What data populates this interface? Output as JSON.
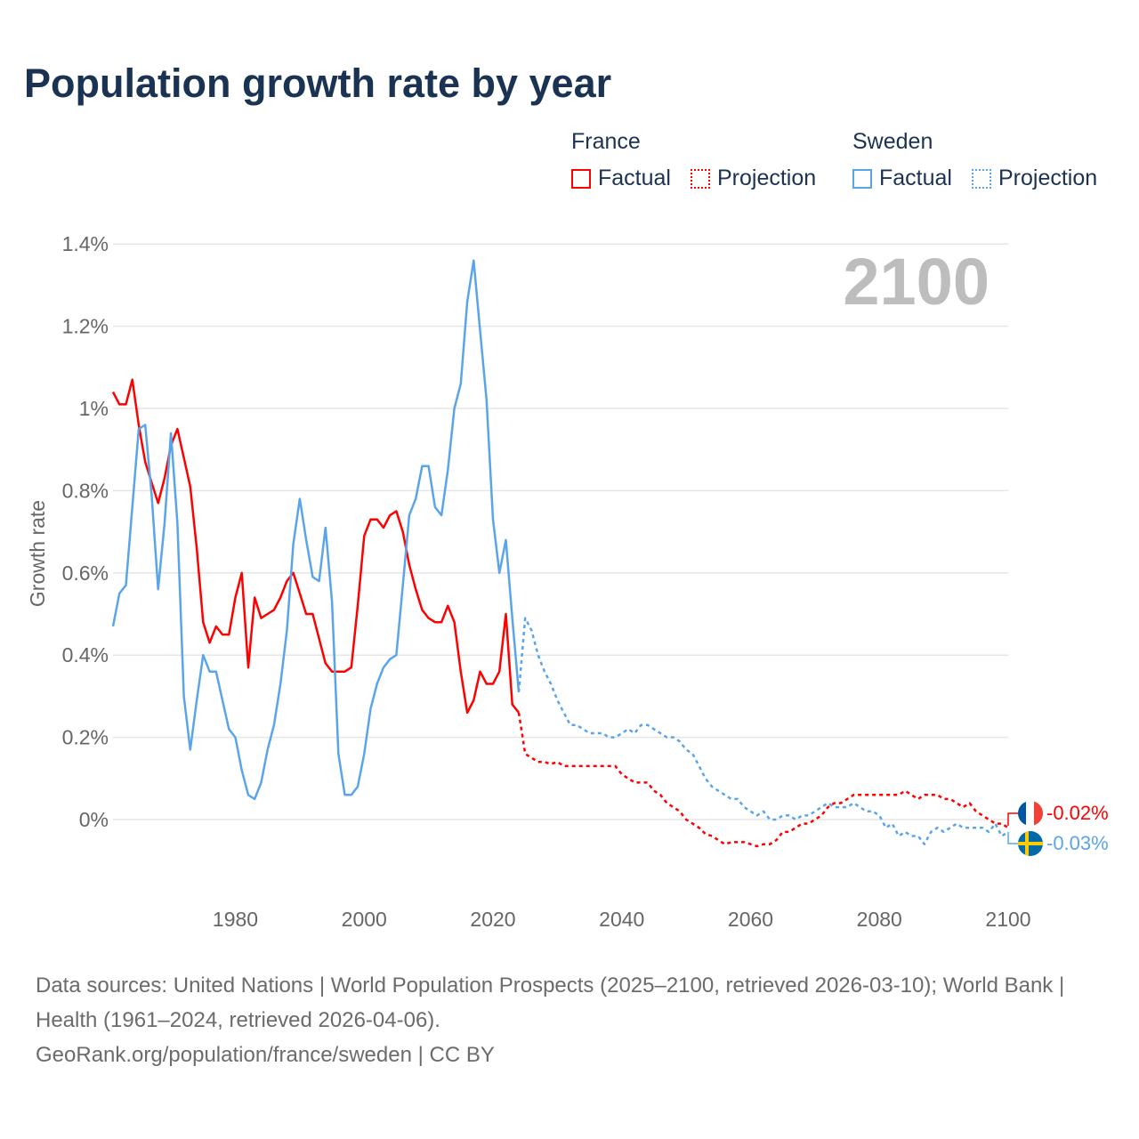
{
  "title": "Population growth rate by year",
  "legend": {
    "groups": [
      {
        "name": "France",
        "factual": "Factual",
        "projection": "Projection",
        "color": "#ff0000"
      },
      {
        "name": "Sweden",
        "factual": "Factual",
        "projection": "Projection",
        "color": "#5aa5ea"
      }
    ]
  },
  "current_year_label": "2100",
  "end_labels": {
    "france": "-0.02%",
    "sweden": "-0.03%"
  },
  "footer": {
    "sources": "Data sources: United Nations | World Population Prospects (2025–2100, retrieved 2026-03-10); World Bank | Health (1961–2024, retrieved 2026-04-06).",
    "credit": "GeoRank.org/population/france/sweden | CC BY"
  },
  "chart_data": {
    "type": "line",
    "title": "Population growth rate by year",
    "xlabel": "",
    "ylabel": "Growth rate",
    "xlim": [
      1961,
      2100
    ],
    "ylim": [
      -0.1,
      1.4
    ],
    "xticks": [
      1980,
      2000,
      2020,
      2040,
      2060,
      2080,
      2100
    ],
    "xtick_labels": [
      "1980",
      "2000",
      "2020",
      "2040",
      "2060",
      "2080",
      "2100"
    ],
    "yticks": [
      0,
      0.2,
      0.4,
      0.6,
      0.8,
      1,
      1.2,
      1.4
    ],
    "ytick_labels": [
      "0%",
      "0.2%",
      "0.4%",
      "0.6%",
      "0.8%",
      "1%",
      "1.2%",
      "1.4%"
    ],
    "grid": true,
    "legend_position": "top-right",
    "series": [
      {
        "name": "France Factual",
        "color": "#ff0000",
        "dashed": false,
        "x_start": 1961,
        "values": [
          1.04,
          1.01,
          1.01,
          1.07,
          0.96,
          0.87,
          0.82,
          0.77,
          0.83,
          0.91,
          0.95,
          0.88,
          0.81,
          0.66,
          0.48,
          0.43,
          0.47,
          0.45,
          0.45,
          0.54,
          0.6,
          0.37,
          0.54,
          0.49,
          0.5,
          0.51,
          0.54,
          0.58,
          0.6,
          0.55,
          0.5,
          0.5,
          0.44,
          0.38,
          0.36,
          0.36,
          0.36,
          0.37,
          0.52,
          0.69,
          0.73,
          0.73,
          0.71,
          0.74,
          0.75,
          0.7,
          0.62,
          0.56,
          0.51,
          0.49,
          0.48,
          0.48,
          0.52,
          0.48,
          0.36,
          0.26,
          0.29,
          0.36,
          0.33,
          0.33,
          0.36,
          0.5,
          0.28,
          0.26
        ]
      },
      {
        "name": "France Projection",
        "color": "#ff0000",
        "dashed": true,
        "x_start": 2024,
        "values": [
          0.26,
          0.16,
          0.15,
          0.14,
          0.14,
          0.135,
          0.14,
          0.13,
          0.13,
          0.13,
          0.13,
          0.13,
          0.13,
          0.13,
          0.13,
          0.13,
          0.11,
          0.1,
          0.09,
          0.09,
          0.09,
          0.07,
          0.06,
          0.04,
          0.03,
          0.02,
          0.0,
          -0.01,
          -0.02,
          -0.035,
          -0.04,
          -0.05,
          -0.06,
          -0.055,
          -0.055,
          -0.055,
          -0.06,
          -0.065,
          -0.06,
          -0.06,
          -0.05,
          -0.03,
          -0.03,
          -0.02,
          -0.01,
          -0.01,
          0.0,
          0.01,
          0.03,
          0.04,
          0.04,
          0.05,
          0.06,
          0.06,
          0.06,
          0.06,
          0.06,
          0.06,
          0.06,
          0.06,
          0.07,
          0.06,
          0.05,
          0.06,
          0.06,
          0.06,
          0.05,
          0.05,
          0.04,
          0.03,
          0.04,
          0.02,
          0.01,
          0.0,
          -0.01,
          -0.01,
          -0.02
        ]
      },
      {
        "name": "Sweden Factual",
        "color": "#5aa5ea",
        "dashed": false,
        "x_start": 1961,
        "values": [
          0.47,
          0.55,
          0.57,
          0.76,
          0.95,
          0.96,
          0.79,
          0.56,
          0.72,
          0.94,
          0.72,
          0.3,
          0.17,
          0.29,
          0.4,
          0.36,
          0.36,
          0.29,
          0.22,
          0.2,
          0.12,
          0.06,
          0.05,
          0.09,
          0.17,
          0.23,
          0.33,
          0.46,
          0.67,
          0.78,
          0.68,
          0.59,
          0.58,
          0.71,
          0.53,
          0.16,
          0.06,
          0.06,
          0.08,
          0.16,
          0.27,
          0.33,
          0.37,
          0.39,
          0.4,
          0.57,
          0.74,
          0.78,
          0.86,
          0.86,
          0.76,
          0.74,
          0.85,
          1.0,
          1.06,
          1.26,
          1.36,
          1.19,
          1.02,
          0.73,
          0.6,
          0.68,
          0.49,
          0.31
        ]
      },
      {
        "name": "Sweden Projection",
        "color": "#5aa5ea",
        "dashed": true,
        "x_start": 2024,
        "values": [
          0.31,
          0.49,
          0.46,
          0.4,
          0.36,
          0.33,
          0.29,
          0.26,
          0.23,
          0.23,
          0.22,
          0.21,
          0.21,
          0.21,
          0.2,
          0.2,
          0.21,
          0.22,
          0.21,
          0.23,
          0.23,
          0.22,
          0.21,
          0.2,
          0.2,
          0.19,
          0.17,
          0.16,
          0.13,
          0.1,
          0.08,
          0.07,
          0.06,
          0.05,
          0.05,
          0.03,
          0.02,
          0.01,
          0.02,
          0.0,
          0.0,
          0.01,
          0.01,
          0.0,
          0.01,
          0.01,
          0.02,
          0.03,
          0.04,
          0.03,
          0.03,
          0.03,
          0.04,
          0.03,
          0.02,
          0.02,
          0.01,
          -0.02,
          -0.01,
          -0.04,
          -0.03,
          -0.04,
          -0.04,
          -0.06,
          -0.03,
          -0.02,
          -0.03,
          -0.02,
          -0.01,
          -0.02,
          -0.02,
          -0.02,
          -0.02,
          -0.03,
          -0.01,
          -0.04,
          -0.03
        ]
      }
    ]
  }
}
